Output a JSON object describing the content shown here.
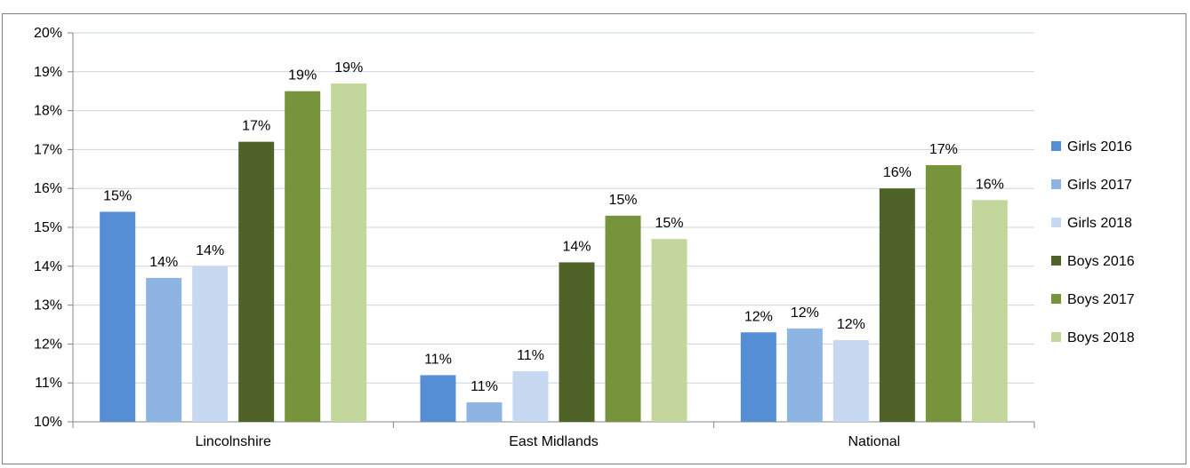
{
  "chart_data": {
    "type": "bar",
    "title": "",
    "xlabel": "",
    "ylabel": "",
    "ylim": [
      0.1,
      0.2
    ],
    "yticks": [
      "10%",
      "11%",
      "12%",
      "13%",
      "14%",
      "15%",
      "16%",
      "17%",
      "18%",
      "19%",
      "20%"
    ],
    "categories": [
      "Lincolnshire",
      "East Midlands",
      "National"
    ],
    "grid": true,
    "legend_position": "right",
    "series": [
      {
        "name": "Girls 2016",
        "color": "#558ed5",
        "values": [
          0.154,
          0.112,
          0.123
        ],
        "labels": [
          "15%",
          "11%",
          "12%"
        ]
      },
      {
        "name": "Girls 2017",
        "color": "#8eb4e3",
        "values": [
          0.137,
          0.105,
          0.124
        ],
        "labels": [
          "14%",
          "11%",
          "12%"
        ]
      },
      {
        "name": "Girls 2018",
        "color": "#c6d9f1",
        "values": [
          0.14,
          0.113,
          0.121
        ],
        "labels": [
          "14%",
          "11%",
          "12%"
        ]
      },
      {
        "name": "Boys 2016",
        "color": "#4f6228",
        "values": [
          0.172,
          0.141,
          0.16
        ],
        "labels": [
          "17%",
          "14%",
          "16%"
        ]
      },
      {
        "name": "Boys 2017",
        "color": "#77933c",
        "values": [
          0.185,
          0.153,
          0.166
        ],
        "labels": [
          "19%",
          "15%",
          "17%"
        ]
      },
      {
        "name": "Boys 2018",
        "color": "#c3d69b",
        "values": [
          0.187,
          0.147,
          0.157
        ],
        "labels": [
          "19%",
          "15%",
          "16%"
        ]
      }
    ]
  }
}
